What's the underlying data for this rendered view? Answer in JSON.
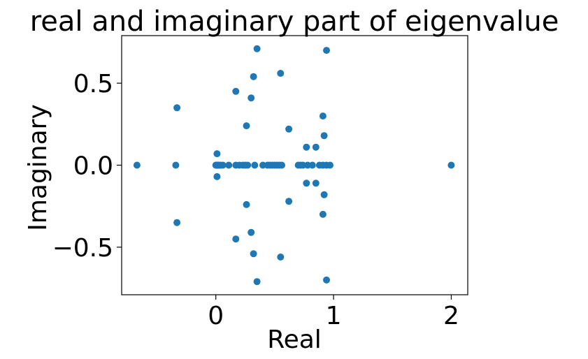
{
  "chart_data": {
    "type": "scatter",
    "title": "real and imaginary part of eigenvalue",
    "xlabel": "Real",
    "ylabel": "Imaginary",
    "xlim": [
      -0.8,
      2.14
    ],
    "ylim": [
      -0.79,
      0.79
    ],
    "xticks": [
      0,
      1,
      2
    ],
    "xtick_labels": [
      "0",
      "1",
      "2"
    ],
    "yticks": [
      -0.5,
      0.0,
      0.5
    ],
    "ytick_labels": [
      "−0.5",
      "0.0",
      "0.5"
    ],
    "grid": false,
    "legend": false,
    "color": "#1f77b4",
    "series": [
      {
        "x": [
          -0.67,
          -0.34,
          0.0,
          0.005,
          0.01,
          0.015,
          0.02,
          0.03,
          0.04,
          0.06,
          0.11,
          0.17,
          0.2,
          0.23,
          0.25,
          0.27,
          0.33,
          0.4,
          0.44,
          0.46,
          0.48,
          0.5,
          0.52,
          0.54,
          0.56,
          0.7,
          0.72,
          0.74,
          0.78,
          0.82,
          0.88,
          0.91,
          0.94,
          0.97,
          2.0,
          -0.33,
          -0.33,
          0.17,
          0.17,
          0.3,
          0.3,
          0.26,
          0.26,
          0.32,
          0.32,
          0.35,
          0.35,
          0.55,
          0.55,
          0.62,
          0.62,
          0.77,
          0.77,
          0.85,
          0.85,
          0.91,
          0.91,
          0.92,
          0.92,
          0.94,
          0.94,
          0.01,
          0.01
        ],
        "y": [
          0,
          0,
          0,
          0,
          0,
          0,
          0,
          0,
          0,
          0,
          0,
          0,
          0,
          0,
          0,
          0,
          0,
          0,
          0,
          0,
          0,
          0,
          0,
          0,
          0,
          0,
          0,
          0,
          0,
          0,
          0,
          0,
          0,
          0,
          0,
          0.35,
          -0.35,
          0.45,
          -0.45,
          0.41,
          -0.41,
          0.24,
          -0.24,
          0.54,
          -0.54,
          0.71,
          -0.71,
          0.56,
          -0.56,
          0.22,
          -0.22,
          0.11,
          -0.11,
          0.11,
          -0.11,
          0.3,
          -0.3,
          0.18,
          -0.18,
          0.7,
          -0.7,
          0.07,
          -0.07
        ]
      }
    ]
  }
}
